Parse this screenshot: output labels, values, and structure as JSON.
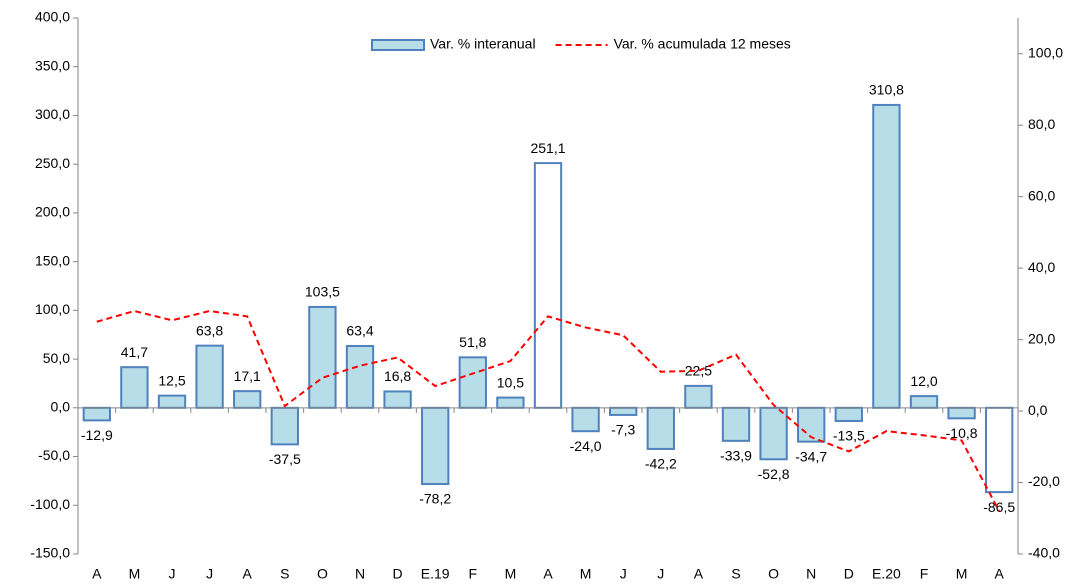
{
  "chart_data": {
    "type": "bar-line",
    "categories": [
      "A",
      "M",
      "J",
      "J",
      "A",
      "S",
      "O",
      "N",
      "D",
      "E.19",
      "F",
      "M",
      "A",
      "M",
      "J",
      "J",
      "A",
      "S",
      "O",
      "N",
      "D",
      "E.20",
      "F",
      "M",
      "A"
    ],
    "series": [
      {
        "name": "Var. % interanual",
        "type": "bar",
        "color": "#b7dde8",
        "edge_color": "#4f81bd",
        "colors": [
          "#b7dde8",
          "#b7dde8",
          "#b7dde8",
          "#b7dde8",
          "#b7dde8",
          "#b7dde8",
          "#b7dde8",
          "#b7dde8",
          "#b7dde8",
          "#b7dde8",
          "#b7dde8",
          "#b7dde8",
          "#ffffff",
          "#b7dde8",
          "#b7dde8",
          "#b7dde8",
          "#b7dde8",
          "#b7dde8",
          "#b7dde8",
          "#b7dde8",
          "#b7dde8",
          "#b7dde8",
          "#b7dde8",
          "#b7dde8",
          "#ffffff"
        ],
        "values": [
          -12.9,
          41.7,
          12.5,
          63.8,
          17.1,
          -37.5,
          103.5,
          63.4,
          16.8,
          -78.2,
          51.8,
          10.5,
          251.1,
          -24.0,
          -7.3,
          -42.2,
          22.5,
          -33.9,
          -52.8,
          -34.7,
          -13.5,
          310.8,
          12.0,
          -10.8,
          -86.5
        ],
        "value_labels": [
          "-12,9",
          "41,7",
          "12,5",
          "63,8",
          "17,1",
          "-37,5",
          "103,5",
          "63,4",
          "16,8",
          "-78,2",
          "51,8",
          "10,5",
          "251,1",
          "-24,0",
          "-7,3",
          "-42,2",
          "22,5",
          "-33,9",
          "-52,8",
          "-34,7",
          "-13,5",
          "310,8",
          "12,0",
          "-10,8",
          "-86,5"
        ]
      },
      {
        "name": "Var. % acumulada 12 meses",
        "type": "line",
        "axis": "y2",
        "color": "#ff0000",
        "dashed": true,
        "values": [
          25,
          28,
          25.4,
          28,
          26.5,
          1.4,
          9.3,
          12.7,
          15,
          7,
          10.5,
          14,
          26.5,
          23.4,
          21.2,
          11,
          11.3,
          15.8,
          1.7,
          -7.3,
          -11.3,
          -5.6,
          -6.8,
          -8.2,
          -28
        ]
      }
    ],
    "ylim": [
      -150,
      400
    ],
    "yticks": [
      {
        "value": -150,
        "label": "-150,0"
      },
      {
        "value": -100,
        "label": "-100,0"
      },
      {
        "value": -50,
        "label": "-50,0"
      },
      {
        "value": 0,
        "label": "0,0"
      },
      {
        "value": 50,
        "label": "50,0"
      },
      {
        "value": 100,
        "label": "100,0"
      },
      {
        "value": 150,
        "label": "150,0"
      },
      {
        "value": 200,
        "label": "200,0"
      },
      {
        "value": 250,
        "label": "250,0"
      },
      {
        "value": 300,
        "label": "300,0"
      },
      {
        "value": 350,
        "label": "350,0"
      },
      {
        "value": 400,
        "label": "400,0"
      }
    ],
    "y2lim": [
      -40,
      110
    ],
    "y2ticks": [
      {
        "value": -40,
        "label": "-40,0"
      },
      {
        "value": -20,
        "label": "-20,0"
      },
      {
        "value": 0,
        "label": "0,0"
      },
      {
        "value": 20,
        "label": "20,0"
      },
      {
        "value": 40,
        "label": "40,0"
      },
      {
        "value": 60,
        "label": "60,0"
      },
      {
        "value": 80,
        "label": "80,0"
      },
      {
        "value": 100,
        "label": "100,0"
      }
    ],
    "legend": "top"
  }
}
